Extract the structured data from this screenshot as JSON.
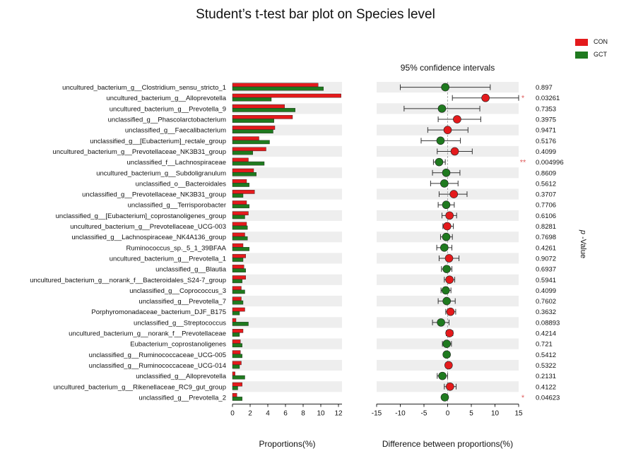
{
  "title": "Student’s t-test bar plot on Species level",
  "colors": {
    "CON": "#e41a1c",
    "GCT": "#1f7a1f",
    "stripe": "#eeeeee",
    "star": "#e06060"
  },
  "legend": [
    {
      "label": "CON",
      "color": "#e41a1c"
    },
    {
      "label": "GCT",
      "color": "#1f7a1f"
    }
  ],
  "chart_data": [
    {
      "type": "bar",
      "orientation": "horizontal",
      "xlabel": "Proportions(%)",
      "xlim": [
        0,
        12.4
      ],
      "xticks": [
        0,
        2,
        4,
        6,
        8,
        10,
        12
      ],
      "categories": [
        "uncultured_bacterium_g__Clostridium_sensu_stricto_1",
        "uncultured_bacterium_g__Alloprevotella",
        "uncultured_bacterium_g__Prevotella_9",
        "unclassified_g__Phascolarctobacterium",
        "unclassified_g__Faecalibacterium",
        "unclassified_g__[Eubacterium]_rectale_group",
        "uncultured_bacterium_g__Prevotellaceae_NK3B31_group",
        "unclassified_f__Lachnospiraceae",
        "uncultured_bacterium_g__Subdoligranulum",
        "unclassified_o__Bacteroidales",
        "unclassified_g__Prevotellaceae_NK3B31_group",
        "unclassified_g__Terrisporobacter",
        "unclassified_g__[Eubacterium]_coprostanoligenes_group",
        "uncultured_bacterium_g__Prevotellaceae_UCG-003",
        "unclassified_g__Lachnospiraceae_NK4A136_group",
        "Ruminococcus_sp._5_1_39BFAA",
        "uncultured_bacterium_g__Prevotella_1",
        "unclassified_g__Blautia",
        "uncultured_bacterium_g__norank_f__Bacteroidales_S24-7_group",
        "unclassified_g__Coprococcus_3",
        "unclassified_g__Prevotella_7",
        "Porphyromonadaceae_bacterium_DJF_B175",
        "unclassified_g__Streptococcus",
        "uncultured_bacterium_g__norank_f__Prevotellaceae",
        "Eubacterium_coprostanoligenes",
        "unclassified_g__Ruminococcaceae_UCG-005",
        "unclassified_g__Ruminococcaceae_UCG-014",
        "unclassified_g__Alloprevotella",
        "uncultured_bacterium_g__Rikenellaceae_RC9_gut_group",
        "unclassified_g__Prevotella_2"
      ],
      "series": [
        {
          "name": "CON",
          "values": [
            9.7,
            12.3,
            5.9,
            6.8,
            4.8,
            3.0,
            3.8,
            1.8,
            2.4,
            1.6,
            2.5,
            1.6,
            1.8,
            1.6,
            1.4,
            1.2,
            1.5,
            1.3,
            1.5,
            1.0,
            1.0,
            1.4,
            0.4,
            1.2,
            0.9,
            0.9,
            1.0,
            0.3,
            1.1,
            0.5
          ]
        },
        {
          "name": "GCT",
          "values": [
            10.3,
            4.4,
            7.1,
            4.7,
            4.6,
            4.2,
            2.3,
            3.6,
            2.7,
            1.9,
            1.2,
            1.9,
            1.4,
            1.7,
            1.7,
            1.9,
            1.2,
            1.5,
            1.1,
            1.4,
            1.2,
            0.8,
            1.8,
            0.8,
            1.1,
            1.1,
            0.8,
            1.4,
            0.6,
            1.1
          ]
        }
      ]
    },
    {
      "type": "scatter",
      "subtitle": "95% confidence intervals",
      "xlabel": "Difference between proportions(%)",
      "xlim": [
        -15,
        15
      ],
      "xticks": [
        -15,
        -10,
        -5,
        0,
        5,
        10,
        15
      ],
      "diff": [
        -0.5,
        8.0,
        -1.2,
        2.0,
        0.0,
        -1.5,
        1.5,
        -1.8,
        -0.3,
        -0.7,
        1.3,
        -0.3,
        0.4,
        -0.1,
        -0.3,
        -0.7,
        0.3,
        -0.2,
        0.4,
        -0.4,
        -0.2,
        0.6,
        -1.4,
        0.4,
        -0.2,
        -0.2,
        0.2,
        -1.1,
        0.5,
        -0.6
      ],
      "ci_low": [
        -10.0,
        1.0,
        -9.2,
        -2.0,
        -4.2,
        -5.6,
        -2.2,
        -3.0,
        -3.2,
        -3.6,
        -1.8,
        -2.0,
        -1.2,
        -1.0,
        -1.5,
        -2.3,
        -1.8,
        -1.3,
        -0.7,
        -1.4,
        -2.0,
        -0.4,
        -3.2,
        -0.3,
        -1.1,
        -0.7,
        -0.4,
        -2.2,
        -0.7,
        -1.2
      ],
      "ci_high": [
        9.0,
        15.0,
        6.8,
        7.0,
        4.3,
        2.7,
        5.2,
        -0.5,
        2.6,
        2.2,
        4.1,
        1.4,
        1.9,
        1.2,
        1.0,
        0.9,
        2.4,
        0.9,
        1.5,
        0.7,
        1.6,
        1.7,
        0.3,
        1.1,
        0.8,
        0.4,
        0.8,
        0.0,
        1.8,
        0.0
      ],
      "winner": [
        "GCT",
        "CON",
        "GCT",
        "CON",
        "CON",
        "GCT",
        "CON",
        "GCT",
        "GCT",
        "GCT",
        "CON",
        "GCT",
        "CON",
        "CON",
        "GCT",
        "GCT",
        "CON",
        "GCT",
        "CON",
        "GCT",
        "GCT",
        "CON",
        "GCT",
        "CON",
        "GCT",
        "GCT",
        "CON",
        "GCT",
        "CON",
        "GCT"
      ],
      "p_values": [
        "0.897",
        "0.03261",
        "0.7353",
        "0.3975",
        "0.9471",
        "0.5176",
        "0.4099",
        "0.004996",
        "0.8609",
        "0.5612",
        "0.3707",
        "0.7706",
        "0.6106",
        "0.8281",
        "0.7698",
        "0.4261",
        "0.9072",
        "0.6937",
        "0.5941",
        "0.4099",
        "0.7602",
        "0.3632",
        "0.08893",
        "0.4214",
        "0.721",
        "0.5412",
        "0.5322",
        "0.2131",
        "0.4122",
        "0.04623"
      ],
      "significance": [
        "",
        "*",
        "",
        "",
        "",
        "",
        "",
        "**",
        "",
        "",
        "",
        "",
        "",
        "",
        "",
        "",
        "",
        "",
        "",
        "",
        "",
        "",
        "",
        "",
        "",
        "",
        "",
        "",
        "",
        "*"
      ],
      "p_label": "p -Value",
      "p_label_prefix": "p",
      "p_label_suffix": " -Value"
    }
  ]
}
